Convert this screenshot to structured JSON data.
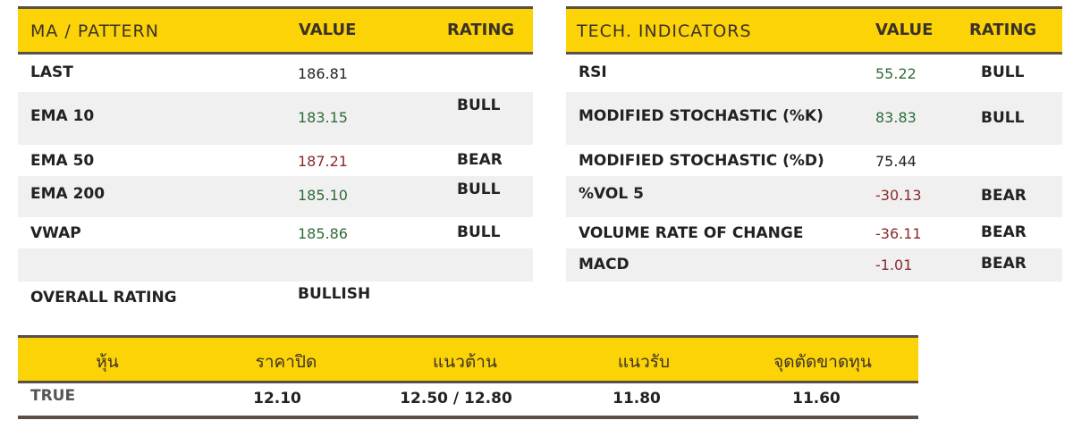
{
  "ma_table": {
    "headers": [
      "MA / PATTERN",
      "VALUE",
      "RATING"
    ],
    "rows": [
      {
        "label": "LAST",
        "value": "186.81",
        "value_color": "dark",
        "rating": ""
      },
      {
        "label": "EMA 10",
        "value": "183.15",
        "value_color": "green",
        "rating": "BULL"
      },
      {
        "label": "EMA 50",
        "value": "187.21",
        "value_color": "red",
        "rating": "BEAR"
      },
      {
        "label": "EMA 200",
        "value": "185.10",
        "value_color": "green",
        "rating": "BULL"
      },
      {
        "label": "VWAP",
        "value": "185.86",
        "value_color": "green",
        "rating": "BULL"
      },
      {
        "label": "",
        "value": "",
        "rating": ""
      },
      {
        "label": "OVERALL RATING",
        "value": "BULLISH",
        "rating": ""
      }
    ]
  },
  "tech_table": {
    "headers": [
      "TECH. INDICATORS",
      "VALUE",
      "RATING"
    ],
    "rows": [
      {
        "label": "RSI",
        "value": "55.22",
        "value_color": "green",
        "rating": "BULL"
      },
      {
        "label": "MODIFIED STOCHASTIC (%K)",
        "value": "83.83",
        "value_color": "green",
        "rating": "BULL"
      },
      {
        "label": "MODIFIED STOCHASTIC (%D)",
        "value": "75.44",
        "value_color": "dark",
        "rating": ""
      },
      {
        "label": "%VOL 5",
        "value": "-30.13",
        "value_color": "red",
        "rating": "BEAR"
      },
      {
        "label": "VOLUME RATE OF CHANGE",
        "value": "-36.11",
        "value_color": "red",
        "rating": "BEAR"
      },
      {
        "label": "MACD",
        "value": "-1.01",
        "value_color": "red",
        "rating": "BEAR"
      }
    ]
  },
  "stock_table": {
    "headers": [
      "หุ้น",
      "ราคาปิด",
      "แนวต้าน",
      "แนวรับ",
      "จุดตัดขาดทุน"
    ],
    "row": [
      "TRUE",
      "12.10",
      "12.50 / 12.80",
      "11.80",
      "11.60"
    ]
  },
  "colors": {
    "header": "#fcd307",
    "border": "#5a5048",
    "bull": "#2e6b3a",
    "bear": "#8b2a2a"
  }
}
